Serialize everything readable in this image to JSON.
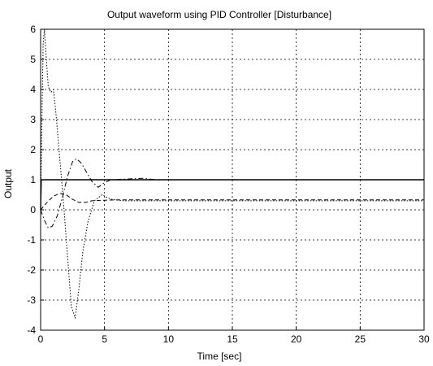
{
  "chart_data": {
    "type": "line",
    "title": "Output waveform using PID Controller [Disturbance]",
    "xlabel": "Time [sec]",
    "ylabel": "Output",
    "xlim": [
      0,
      30
    ],
    "ylim": [
      -4,
      6
    ],
    "xticks": [
      "0",
      "5",
      "10",
      "15",
      "20",
      "25",
      "30"
    ],
    "yticks": [
      "-4",
      "-3",
      "-2",
      "-1",
      "0",
      "1",
      "2",
      "3",
      "4",
      "5",
      "6"
    ],
    "grid": true,
    "line_color": "#000000",
    "series": [
      {
        "style": "solid",
        "x": [
          0,
          0.05,
          30
        ],
        "y": [
          0,
          1,
          1
        ]
      },
      {
        "style": "dotted",
        "x": [
          0,
          0.1,
          0.2,
          0.3,
          0.45,
          0.6,
          0.8,
          1.0,
          1.2,
          1.5,
          1.8,
          2.1,
          2.4,
          2.7,
          3.0,
          3.3,
          3.7,
          4.2,
          4.8,
          5.5,
          6.5,
          8,
          9,
          30
        ],
        "y": [
          0,
          3.0,
          5.5,
          6.0,
          5.0,
          4.1,
          3.9,
          4.0,
          3.2,
          1.7,
          0.2,
          -1.5,
          -3.2,
          -3.6,
          -2.6,
          -1.4,
          -0.4,
          0.3,
          0.5,
          0.35,
          0.3,
          0.3,
          0.3,
          0.3
        ]
      },
      {
        "style": "dashdot",
        "x": [
          0,
          0.3,
          0.6,
          0.9,
          1.3,
          1.7,
          2.1,
          2.5,
          2.8,
          3.2,
          3.6,
          4.0,
          4.5,
          5.0,
          5.5,
          6.5,
          8.0,
          9.0,
          30
        ],
        "y": [
          0,
          -0.35,
          -0.6,
          -0.55,
          -0.2,
          0.4,
          1.1,
          1.6,
          1.7,
          1.55,
          1.25,
          0.95,
          0.75,
          0.9,
          1.0,
          1.02,
          1.05,
          1.0,
          1.0
        ]
      },
      {
        "style": "dashed",
        "x": [
          0,
          0.5,
          1.0,
          1.5,
          2.0,
          2.5,
          3.0,
          3.5,
          4.0,
          5.0,
          6.0,
          30
        ],
        "y": [
          0,
          0.25,
          0.45,
          0.55,
          0.5,
          0.35,
          0.25,
          0.25,
          0.3,
          0.32,
          0.33,
          0.33
        ]
      }
    ]
  }
}
